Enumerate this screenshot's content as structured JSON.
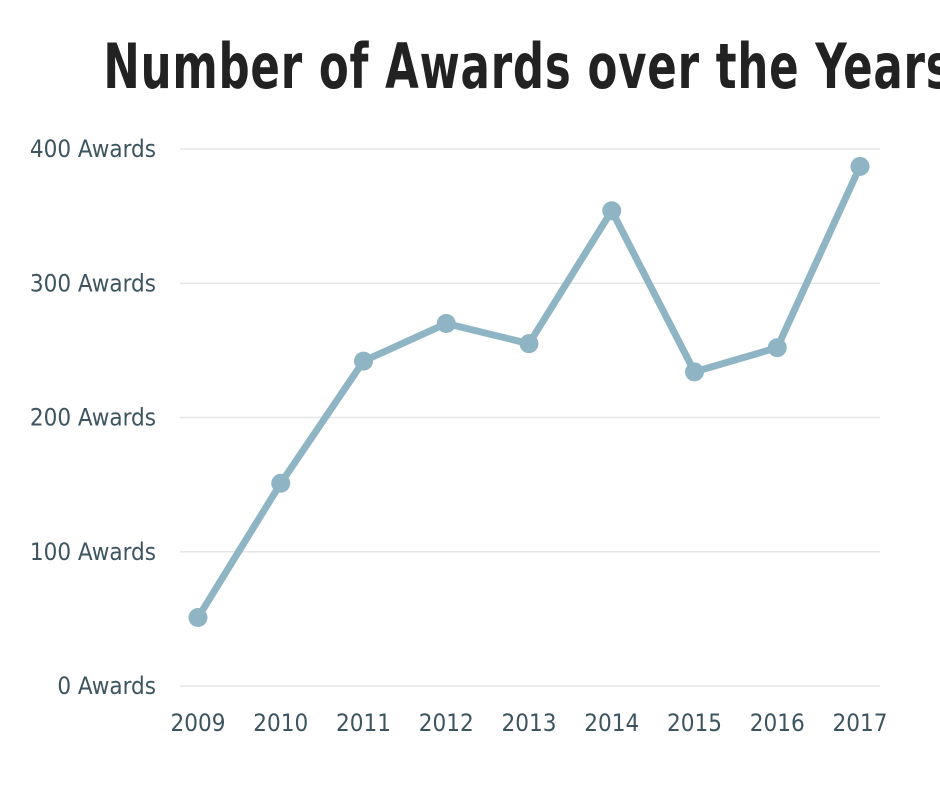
{
  "chart_data": {
    "type": "line",
    "title": "Number of Awards over the Years",
    "x": [
      "2009",
      "2010",
      "2011",
      "2012",
      "2013",
      "2014",
      "2015",
      "2016",
      "2017"
    ],
    "series": [
      {
        "values": [
          51,
          151,
          242,
          270,
          255,
          354,
          234,
          252,
          387
        ]
      }
    ],
    "ytick_labels": [
      "0 Awards",
      "100 Awards",
      "200 Awards",
      "300 Awards",
      "400 Awards"
    ],
    "ylim": [
      0,
      400
    ],
    "grid": true,
    "colors": {
      "line": "#8fb5c5",
      "grid": "#e3e6e8",
      "tick_text": "#3c5560",
      "title": "#222222"
    }
  }
}
